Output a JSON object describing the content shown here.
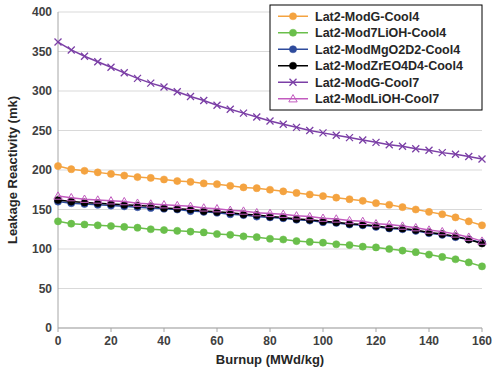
{
  "chart_data": {
    "type": "line",
    "x_label": "Burnup (MWd/kg)",
    "y_label": "Leakage Reactivity (mk)",
    "x": [
      0,
      5,
      10,
      15,
      20,
      25,
      30,
      35,
      40,
      45,
      50,
      55,
      60,
      65,
      70,
      75,
      80,
      85,
      90,
      95,
      100,
      105,
      110,
      115,
      120,
      125,
      130,
      135,
      140,
      145,
      150,
      155,
      160
    ],
    "xlim": [
      0,
      160
    ],
    "xticks": [
      0,
      20,
      40,
      60,
      80,
      100,
      120,
      140,
      160
    ],
    "ylim": [
      0,
      400
    ],
    "yticks": [
      0,
      50,
      100,
      150,
      200,
      250,
      300,
      350,
      400
    ],
    "grid": true,
    "legend": "top-right",
    "series": [
      {
        "name": "Lat2-ModG-Cool4",
        "color": "#f4a340",
        "marker": "circle",
        "line_style": "solid",
        "values": [
          205,
          201,
          199,
          197,
          195,
          193,
          191,
          190,
          188,
          186,
          185,
          183,
          182,
          180,
          178,
          177,
          175,
          173,
          171,
          169,
          167,
          165,
          163,
          161,
          158,
          156,
          153,
          150,
          147,
          144,
          140,
          135,
          130
        ]
      },
      {
        "name": "Lat2-Mod7LiOH-Cool4",
        "color": "#6abf4b",
        "marker": "circle",
        "line_style": "solid",
        "values": [
          135,
          132,
          131,
          130,
          129,
          128,
          127,
          125,
          124,
          123,
          122,
          121,
          119,
          118,
          116,
          115,
          113,
          112,
          110,
          109,
          108,
          106,
          105,
          103,
          102,
          100,
          98,
          96,
          93,
          90,
          87,
          83,
          78
        ]
      },
      {
        "name": "Lat2-ModMgO2D2-Cool4",
        "color": "#2e4b9c",
        "marker": "circle",
        "line_style": "solid",
        "values": [
          160,
          158,
          157,
          156,
          155,
          154,
          153,
          152,
          151,
          150,
          148,
          147,
          146,
          144,
          143,
          141,
          140,
          139,
          137,
          136,
          134,
          133,
          131,
          130,
          128,
          126,
          125,
          123,
          120,
          118,
          115,
          112,
          108
        ]
      },
      {
        "name": "Lat2-ModZrEO4D4-Cool4",
        "color": "#000000",
        "marker": "circle",
        "line_style": "solid",
        "values": [
          162,
          160,
          159,
          158,
          157,
          156,
          155,
          154,
          152,
          151,
          150,
          148,
          147,
          146,
          144,
          143,
          141,
          140,
          138,
          137,
          135,
          134,
          132,
          131,
          129,
          127,
          126,
          124,
          121,
          119,
          116,
          112,
          107
        ]
      },
      {
        "name": "Lat2-ModG-Cool7",
        "color": "#7b3fa6",
        "marker": "x",
        "line_style": "solid",
        "values": [
          362,
          352,
          344,
          337,
          330,
          323,
          316,
          310,
          305,
          299,
          293,
          288,
          282,
          277,
          272,
          267,
          262,
          258,
          254,
          250,
          247,
          244,
          241,
          238,
          235,
          232,
          230,
          227,
          225,
          222,
          220,
          217,
          214
        ]
      },
      {
        "name": "Lat2-ModLiOH-Cool7",
        "color": "#c25bbf",
        "marker": "triangle",
        "line_style": "solid",
        "values": [
          167,
          165,
          163,
          162,
          161,
          160,
          158,
          157,
          156,
          155,
          154,
          152,
          151,
          149,
          148,
          146,
          145,
          144,
          142,
          141,
          139,
          138,
          136,
          135,
          132,
          131,
          129,
          127,
          124,
          122,
          119,
          115,
          110
        ]
      }
    ]
  }
}
